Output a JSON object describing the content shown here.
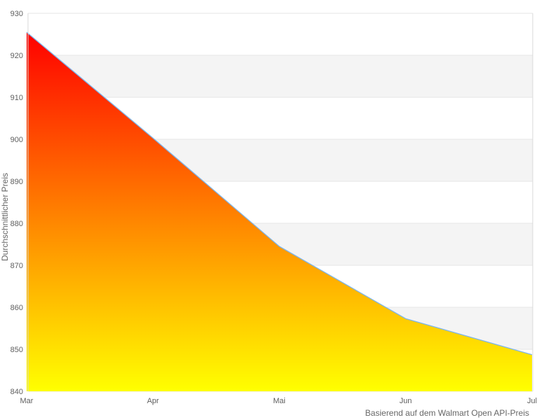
{
  "chart_data": {
    "type": "area",
    "x_categories": [
      "Mar",
      "Apr",
      "Mai",
      "Jun",
      "Jul"
    ],
    "values": [
      925.5,
      900.3,
      874.5,
      857.3,
      848.7
    ],
    "xlabel": "Basierend auf dem Walmart Open API-Preis",
    "ylabel": "Durchschnittlicher Preis",
    "ylim": [
      840,
      930
    ],
    "ytick_step": 10,
    "yticks": [
      840,
      850,
      860,
      870,
      880,
      890,
      900,
      910,
      920,
      930
    ],
    "grid": true,
    "legend_position": "none",
    "colors": {
      "line": "#7cb5ec",
      "gradient_top": "#ff0000",
      "gradient_bottom": "#ffff00",
      "gridline": "#e6e6e6",
      "alternate_band": "#f4f4f4",
      "axis_border": "#d9d9d9",
      "tick_label": "#606060",
      "axis_title": "#666666",
      "background": "#ffffff"
    }
  }
}
